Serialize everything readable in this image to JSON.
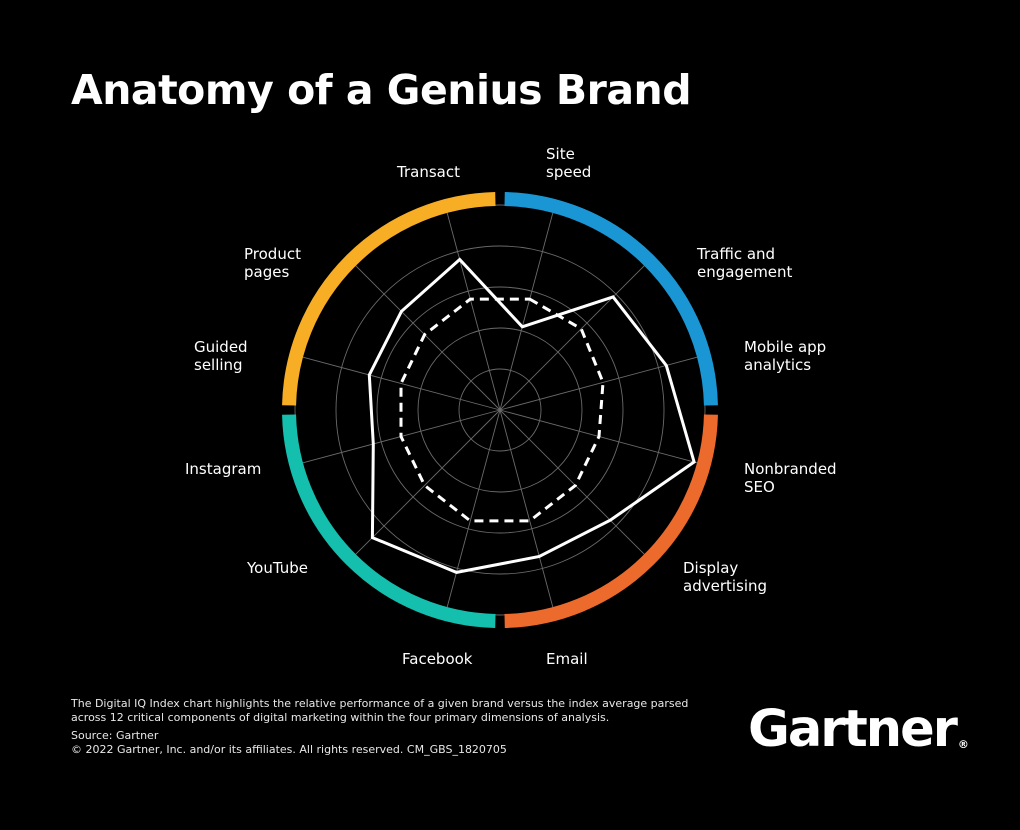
{
  "title": "Anatomy of a Genius Brand",
  "footnote": {
    "description": "The Digital IQ Index chart highlights the relative performance of a given brand versus the index average parsed across 12 critical components of digital marketing within the four primary dimensions of analysis.",
    "source": "Source: Gartner",
    "copyright": "© 2022 Gartner, Inc. and/or its affiliates. All rights reserved. CM_GBS_1820705"
  },
  "logo": {
    "text": "Gartner",
    "mark": "®"
  },
  "colors": {
    "background": "#000000",
    "blue": "#1a96d4",
    "orange": "#ec6a2c",
    "teal": "#14bfae",
    "yellow": "#f7ae24",
    "grid": "#6a6a6a"
  },
  "chart_data": {
    "type": "radar",
    "title": "Anatomy of a Genius Brand",
    "rmax": 5,
    "grid_rings": [
      1,
      2,
      3,
      4,
      5
    ],
    "axes": [
      "Site speed",
      "Traffic and engagement",
      "Mobile app analytics",
      "Nonbranded SEO",
      "Display advertising",
      "Email",
      "Facebook",
      "YouTube",
      "Instagram",
      "Guided selling",
      "Product pages",
      "Transact"
    ],
    "axis_labels_multiline": [
      [
        "Site",
        "speed"
      ],
      [
        "Traffic and",
        "engagement"
      ],
      [
        "Mobile app",
        "analytics"
      ],
      [
        "Nonbranded",
        "SEO"
      ],
      [
        "Display",
        "advertising"
      ],
      [
        "Email"
      ],
      [
        "Facebook"
      ],
      [
        "YouTube"
      ],
      [
        "Instagram"
      ],
      [
        "Guided",
        "selling"
      ],
      [
        "Product",
        "pages"
      ],
      [
        "Transact"
      ]
    ],
    "series": [
      {
        "style": "solid",
        "values": [
          2.1,
          3.9,
          4.2,
          4.9,
          3.8,
          3.7,
          4.1,
          4.4,
          3.2,
          3.3,
          3.4,
          3.8
        ]
      },
      {
        "style": "dashed",
        "values": [
          2.8,
          2.8,
          2.6,
          2.5,
          2.6,
          2.8,
          2.8,
          2.6,
          2.5,
          2.5,
          2.6,
          2.8
        ]
      }
    ],
    "dimensions": [
      {
        "color": "blue",
        "axes": [
          "Site speed",
          "Traffic and engagement",
          "Mobile app analytics"
        ]
      },
      {
        "color": "orange",
        "axes": [
          "Nonbranded SEO",
          "Display advertising",
          "Email"
        ]
      },
      {
        "color": "teal",
        "axes": [
          "Facebook",
          "YouTube",
          "Instagram"
        ]
      },
      {
        "color": "yellow",
        "axes": [
          "Guided selling",
          "Product pages",
          "Transact"
        ]
      }
    ]
  }
}
